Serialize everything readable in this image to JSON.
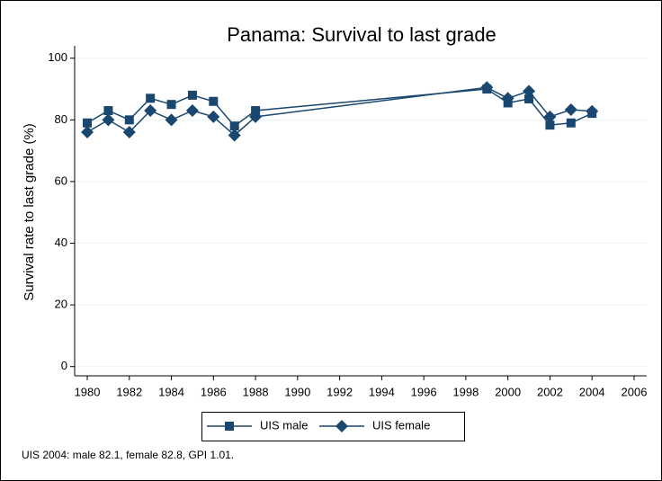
{
  "chart_data": {
    "type": "line",
    "title": "Panama: Survival to last grade",
    "y_label": "Survival rate to last grade (%)",
    "note": "UIS 2004: male 82.1, female 82.8, GPI 1.01.",
    "x": [
      1980,
      1981,
      1982,
      1983,
      1984,
      1985,
      1986,
      1987,
      1988,
      1999,
      2000,
      2001,
      2002,
      2003,
      2004
    ],
    "series": [
      {
        "name": "UIS male",
        "color": "#1a476f",
        "marker": "square",
        "values": [
          79,
          83,
          80,
          87,
          85,
          88,
          86,
          78,
          83,
          90,
          85.5,
          86.8,
          78.3,
          79,
          82.1
        ]
      },
      {
        "name": "UIS female",
        "color": "#1a476f",
        "marker": "diamond",
        "values": [
          76,
          80,
          76,
          83,
          80,
          83,
          81,
          75,
          81,
          90.5,
          87,
          89.3,
          81,
          83.3,
          82.8
        ]
      }
    ],
    "xlim": [
      1979.4,
      2006.6
    ],
    "xticks": [
      1980,
      1982,
      1984,
      1986,
      1988,
      1990,
      1992,
      1994,
      1996,
      1998,
      2000,
      2002,
      2004,
      2006
    ],
    "ylim": [
      -3,
      104
    ],
    "yticks": [
      0,
      20,
      40,
      60,
      80,
      100
    ],
    "grid": true,
    "legend": "bottom"
  }
}
